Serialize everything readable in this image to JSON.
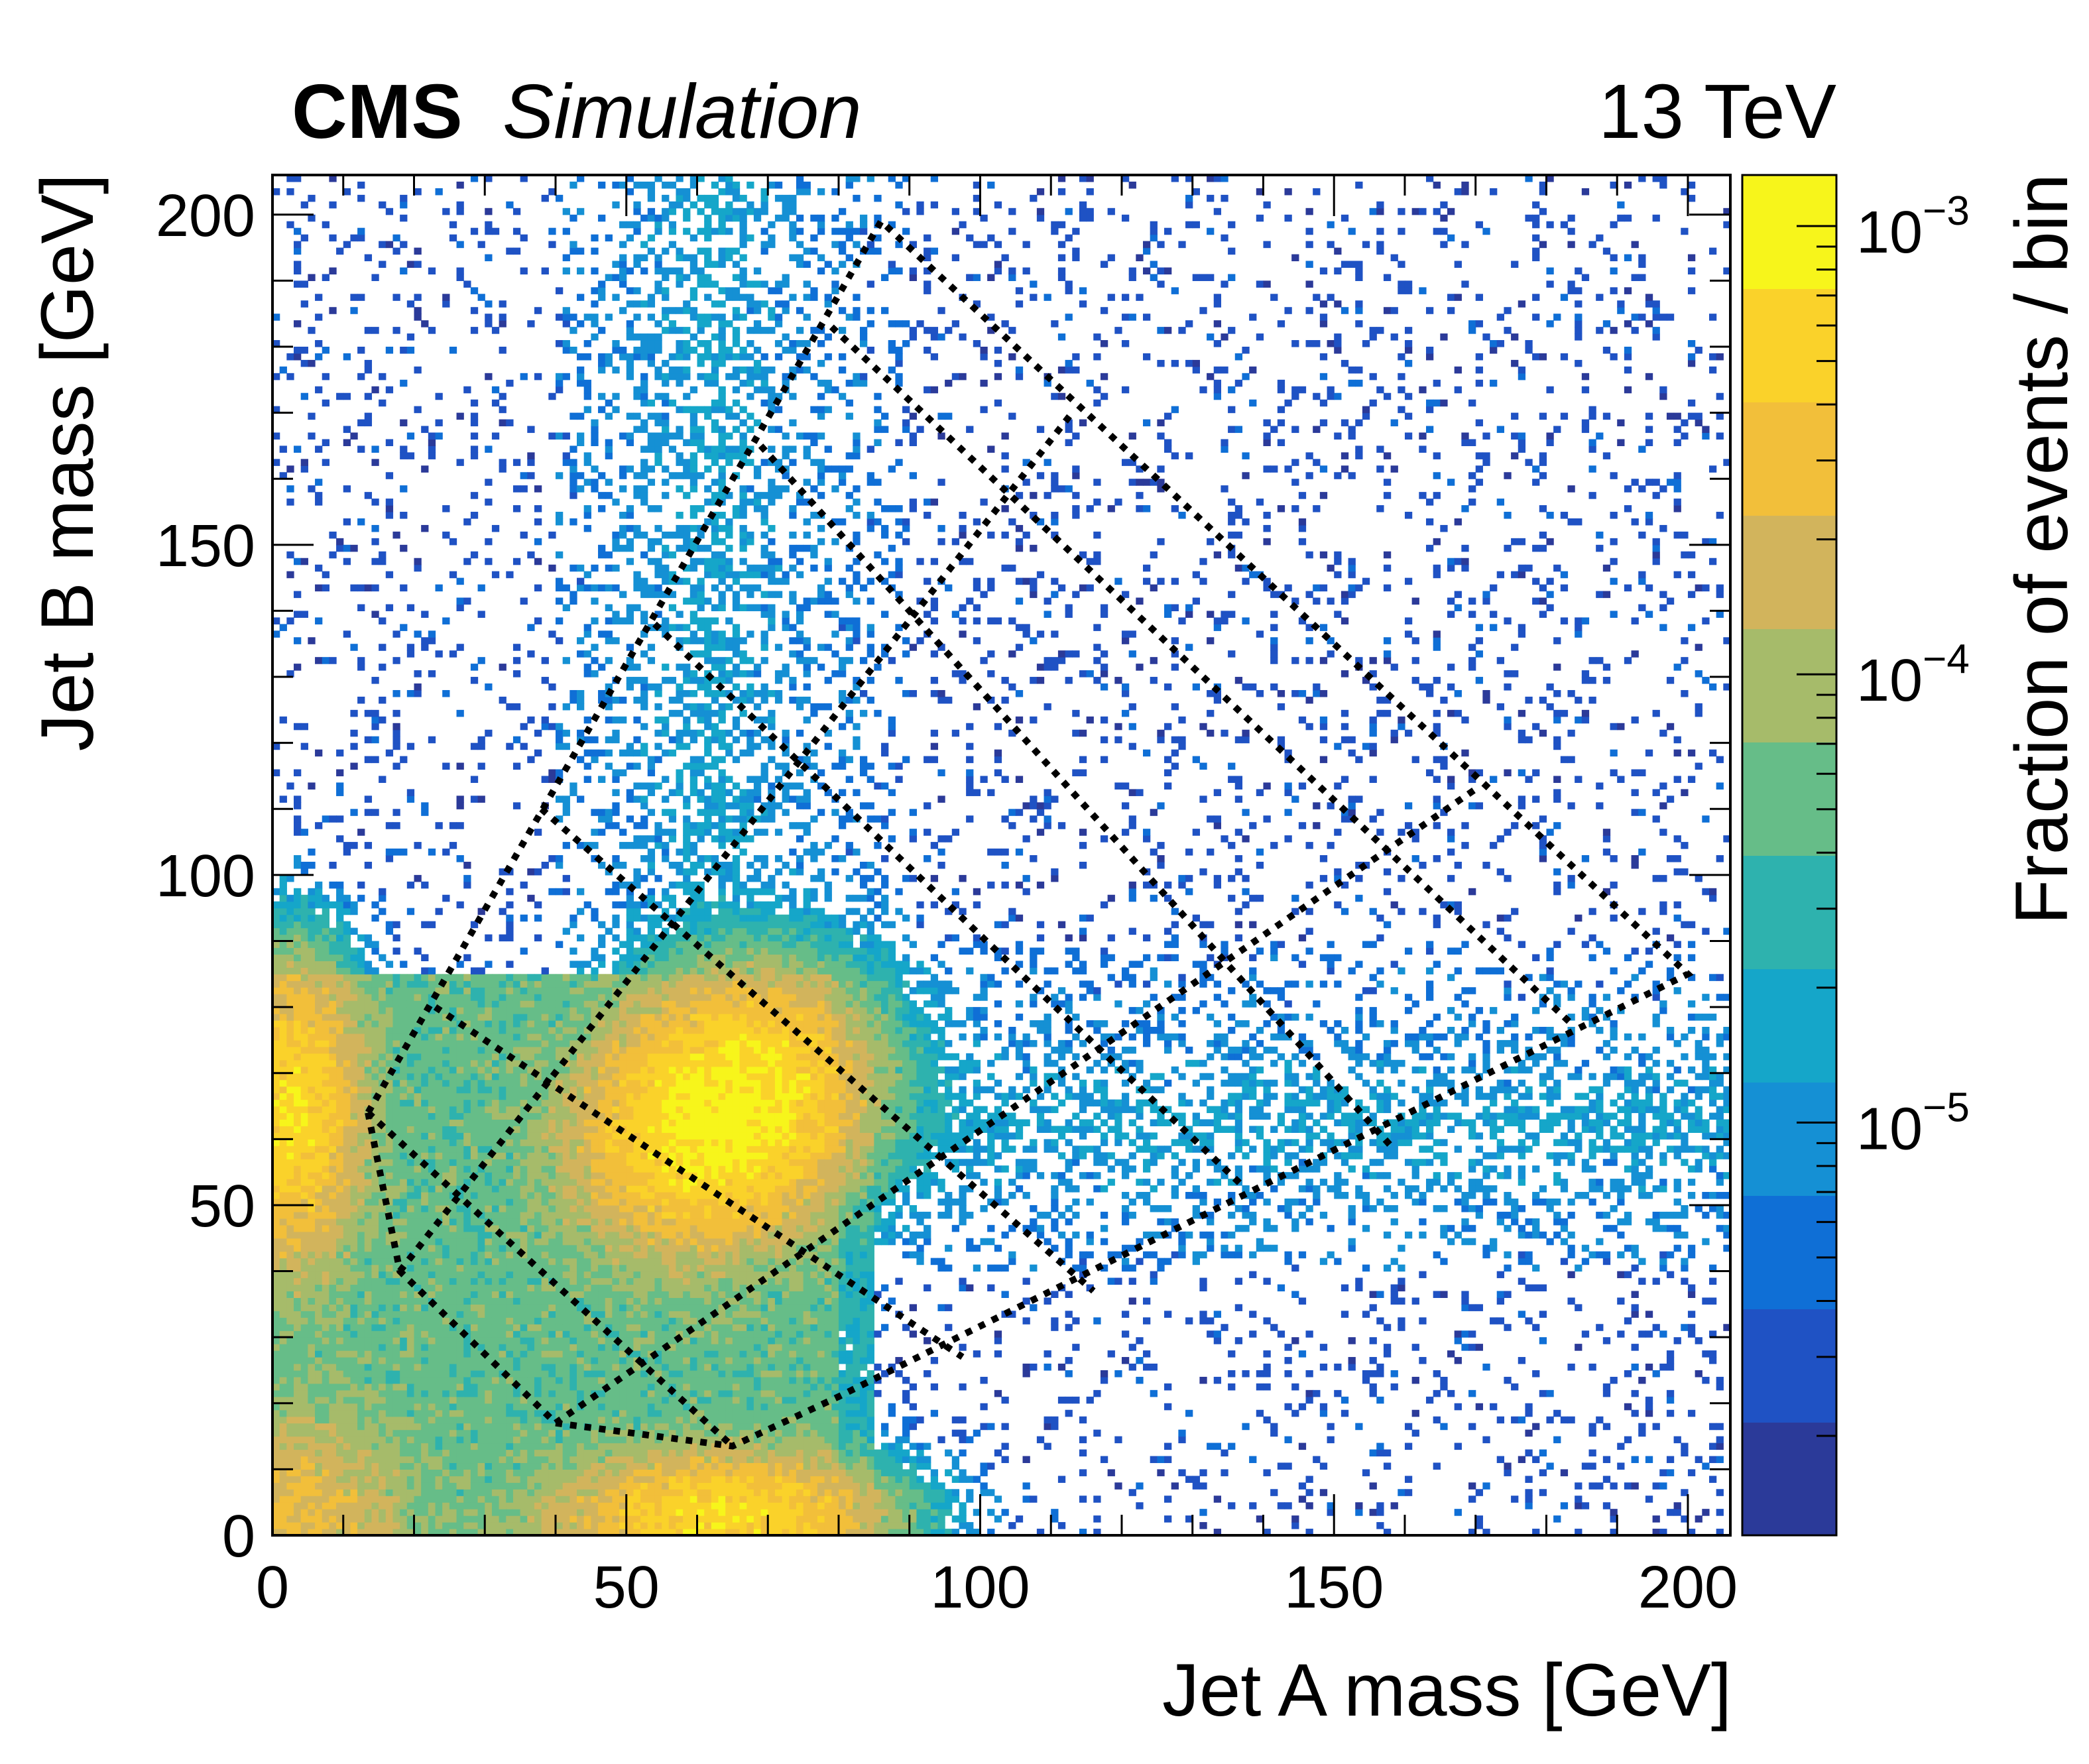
{
  "header": {
    "experiment": "CMS",
    "qualifier": "Simulation",
    "energy": "13 TeV"
  },
  "chart_data": {
    "type": "heatmap",
    "title": "",
    "xlabel": "Jet A mass [GeV]",
    "ylabel": "Jet B mass [GeV]",
    "zlabel": "Fraction of events / bin",
    "xlim": [
      0,
      206
    ],
    "ylim": [
      0,
      206
    ],
    "zlim": [
      1.2e-06,
      0.0013
    ],
    "zscale": "log",
    "x_ticks": [
      0,
      50,
      100,
      150,
      200
    ],
    "x_tick_labels": [
      "0",
      "50",
      "100",
      "150",
      "200"
    ],
    "y_ticks": [
      0,
      50,
      100,
      150,
      200
    ],
    "y_tick_labels": [
      "0",
      "50",
      "100",
      "150",
      "200"
    ],
    "z_ticks": [
      {
        "base": "10",
        "exp": "−3",
        "value": 0.001
      },
      {
        "base": "10",
        "exp": "−4",
        "value": 0.0001
      },
      {
        "base": "10",
        "exp": "−5",
        "value": 1e-05
      }
    ],
    "colormap": [
      "#2b3a99",
      "#1f52c4",
      "#0f6fd6",
      "#1590d4",
      "#15a6c9",
      "#2eb2ae",
      "#66bd88",
      "#a6bb6a",
      "#d2b45c",
      "#f2bf3a",
      "#fad22a",
      "#f7f51b"
    ],
    "grid": false,
    "density_clusters": [
      {
        "mx": 64,
        "my": 64,
        "sigma_along": 11,
        "sigma_across": 9,
        "rotation_deg": -45,
        "peak": 0.001
      },
      {
        "mx": 3,
        "my": 64,
        "sigma_along": 5,
        "sigma_across": 12,
        "rotation_deg": 0,
        "peak": 0.0006
      },
      {
        "mx": 64,
        "my": 3,
        "sigma_along": 12,
        "sigma_across": 5,
        "rotation_deg": 0,
        "peak": 0.0006
      },
      {
        "mx": 3,
        "my": 3,
        "sigma_along": 9,
        "sigma_across": 9,
        "rotation_deg": 0,
        "peak": 0.0002
      }
    ],
    "overlay": {
      "style": "dotted",
      "color": "#000000",
      "outline": [
        [
          13.5,
          64
        ],
        [
          18,
          40
        ],
        [
          40,
          17
        ],
        [
          65,
          13.5
        ],
        [
          80,
          21
        ],
        [
          200,
          85
        ],
        [
          86,
          199
        ],
        [
          13.5,
          64
        ]
      ],
      "segments": [
        [
          [
            23,
            80
          ],
          [
            97.5,
            27
          ]
        ],
        [
          [
            38,
            110
          ],
          [
            116,
            37
          ]
        ],
        [
          [
            54,
            138
          ],
          [
            137,
            53
          ]
        ],
        [
          [
            69,
            165
          ],
          [
            158,
            59
          ]
        ],
        [
          [
            79,
            183
          ],
          [
            184,
            77
          ]
        ],
        [
          [
            18,
            40
          ],
          [
            113,
            170
          ]
        ],
        [
          [
            40,
            17
          ],
          [
            170,
            113
          ]
        ],
        [
          [
            13.5,
            64
          ],
          [
            65,
            13.5
          ]
        ]
      ]
    }
  }
}
